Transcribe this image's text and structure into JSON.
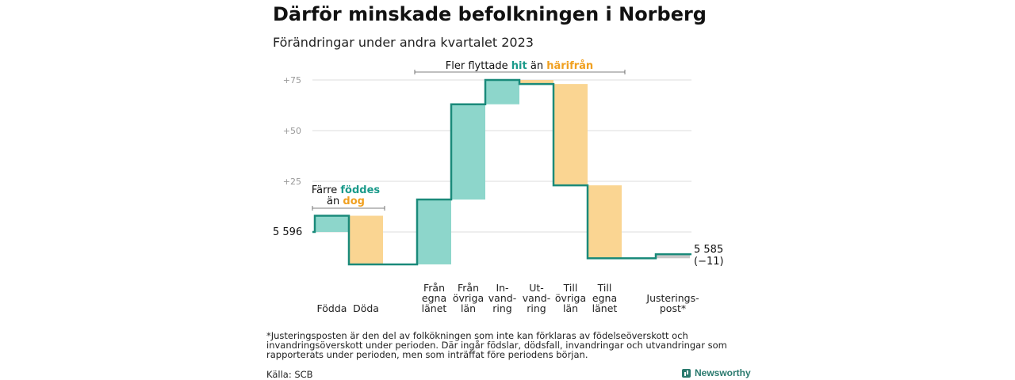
{
  "title": "Därför minskade befolkningen i Norberg",
  "subtitle": "Förändringar under andra kvartalet 2023",
  "colors": {
    "increase": "#8dd6cb",
    "decrease": "#fad592",
    "adjustment": "#c8c8c8",
    "line": "#1a8a7a",
    "teal_text": "#1a9a8a",
    "orange_text": "#f0a020",
    "grid": "#dddddd",
    "tick": "#999999"
  },
  "annotations": {
    "births_prefix": "Färre ",
    "births_highlight": "föddes",
    "deaths_prefix": "än ",
    "deaths_highlight": "dog",
    "migration_prefix": "Fler flyttade ",
    "migration_highlight1": "hit",
    "migration_mid": " än ",
    "migration_highlight2": "härifrån"
  },
  "chart_data": {
    "type": "waterfall",
    "start_label": "5 596",
    "end_label_line1": "5 585",
    "end_label_line2": "(−11)",
    "y_ticks": [
      {
        "value": 25,
        "label": "+25"
      },
      {
        "value": 50,
        "label": "+50"
      },
      {
        "value": 75,
        "label": "+75"
      }
    ],
    "ylim": [
      -16,
      82
    ],
    "categories": [
      {
        "label": [
          "Födda"
        ],
        "delta": 8,
        "kind": "increase"
      },
      {
        "label": [
          "Döda"
        ],
        "delta": -24,
        "kind": "decrease"
      },
      {
        "label": [
          "Från",
          "egna",
          "länet"
        ],
        "delta": 32,
        "kind": "increase"
      },
      {
        "label": [
          "Från",
          "övriga",
          "län"
        ],
        "delta": 47,
        "kind": "increase"
      },
      {
        "label": [
          "In-",
          "vand-",
          "ring"
        ],
        "delta": 12,
        "kind": "increase"
      },
      {
        "label": [
          "Ut-",
          "vand-",
          "ring"
        ],
        "delta": -2,
        "kind": "decrease"
      },
      {
        "label": [
          "Till",
          "övriga",
          "län"
        ],
        "delta": -50,
        "kind": "decrease"
      },
      {
        "label": [
          "Till",
          "egna",
          "länet"
        ],
        "delta": -36,
        "kind": "decrease"
      },
      {
        "label": [
          "Justerings-",
          "post*"
        ],
        "delta": 2,
        "kind": "adjustment"
      }
    ]
  },
  "footnote": "*Justeringsposten är den del av folkökningen som inte kan förklaras av födelseöverskott och invandringsöverskott under perioden. Där ingår födslar, dödsfall, invandringar och utvandringar som rapporterats under perioden, men som inträffat före periodens början.",
  "source": "Källa: SCB",
  "brand": "Newsworthy"
}
